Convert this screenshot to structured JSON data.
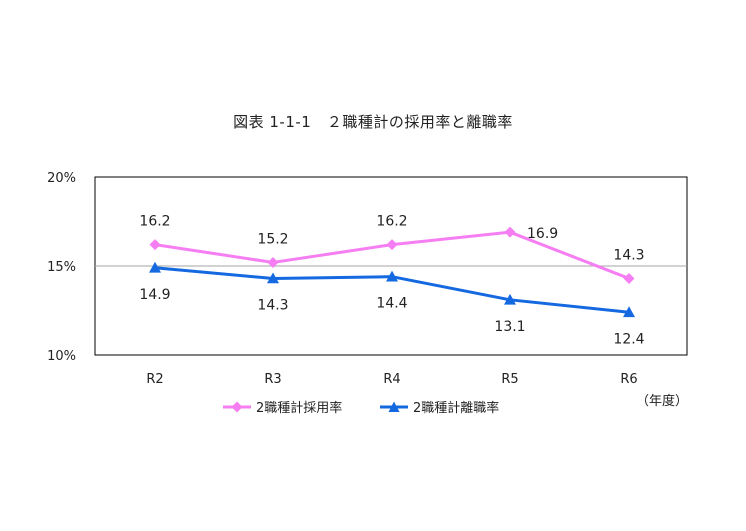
{
  "chart_data": {
    "type": "line",
    "title": "図表 1-1-1　２職種計の採用率と離職率",
    "categories": [
      "R2",
      "R3",
      "R4",
      "R5",
      "R6"
    ],
    "x_unit_label": "（年度）",
    "y_ticks": [
      "20%",
      "15%",
      "10%"
    ],
    "ylim": [
      10,
      20
    ],
    "grid": "horizontal line at 15%",
    "legend_position": "bottom-center",
    "series": [
      {
        "name": "2職種計採用率",
        "values": [
          16.2,
          15.2,
          16.2,
          16.9,
          14.3
        ],
        "labels": [
          "16.2",
          "15.2",
          "16.2",
          "16.9",
          "14.3"
        ],
        "color": "#f57ef2",
        "marker": "diamond"
      },
      {
        "name": "2職種計離職率",
        "values": [
          14.9,
          14.3,
          14.4,
          13.1,
          12.4
        ],
        "labels": [
          "14.9",
          "14.3",
          "14.4",
          "13.1",
          "12.4"
        ],
        "color": "#1569e0",
        "marker": "triangle"
      }
    ]
  }
}
